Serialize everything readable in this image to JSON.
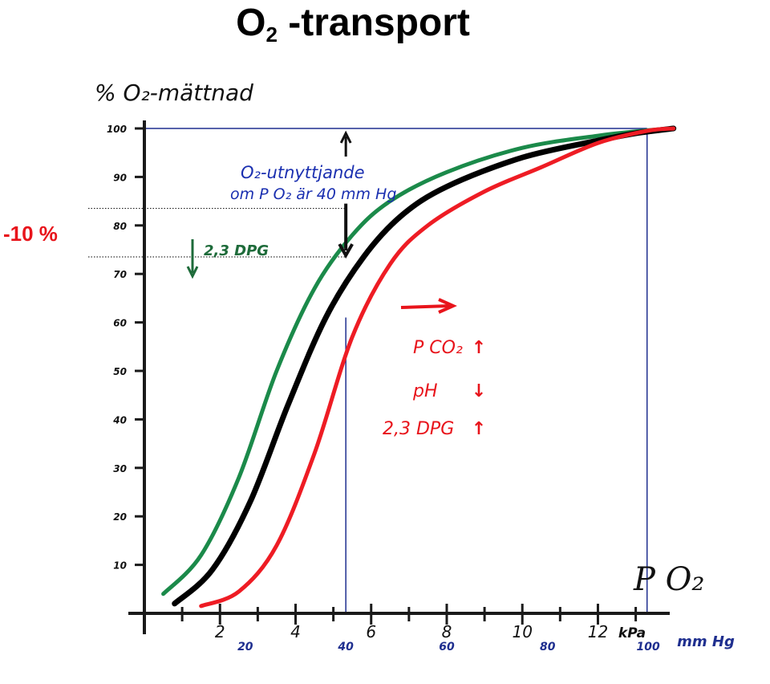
{
  "title_main": "O",
  "title_sub": "2",
  "title_rest": " -transport",
  "annotation_reduction": "-10 %",
  "chart_data": {
    "type": "line",
    "ylabel": "% O₂-mättnad",
    "xlabel": "P O₂",
    "xlim_kpa": [
      0,
      13.9
    ],
    "ylim": [
      0,
      100
    ],
    "y_ticks": [
      10,
      20,
      30,
      40,
      50,
      60,
      70,
      80,
      90,
      100
    ],
    "x_ticks_kpa": [
      {
        "value": 2,
        "label": "2"
      },
      {
        "value": 4,
        "label": "4"
      },
      {
        "value": 6,
        "label": "6"
      },
      {
        "value": 8,
        "label": "8"
      },
      {
        "value": 10,
        "label": "10"
      },
      {
        "value": 12,
        "label": "12"
      }
    ],
    "x_unit_kpa": "kPa",
    "x_ticks_mmhg": [
      {
        "kpa": 2.67,
        "label": "20"
      },
      {
        "kpa": 5.33,
        "label": "40"
      },
      {
        "kpa": 8.0,
        "label": "60"
      },
      {
        "kpa": 10.67,
        "label": "80"
      },
      {
        "kpa": 13.33,
        "label": "100"
      }
    ],
    "x_unit_mmhg": "mm Hg",
    "series": [
      {
        "color": "#1b8a4a",
        "x": [
          0.5,
          1.5,
          2.5,
          3.5,
          4.5,
          5.5,
          6.5,
          8,
          10,
          12,
          13.3,
          14
        ],
        "y": [
          4,
          12,
          28,
          50,
          67,
          78,
          85,
          91,
          96,
          98.5,
          99.6,
          100
        ]
      },
      {
        "color": "#000000",
        "x": [
          0.8,
          1.8,
          2.8,
          3.8,
          4.8,
          5.8,
          6.8,
          8,
          10,
          12,
          13,
          14
        ],
        "y": [
          2,
          9,
          23,
          43,
          61,
          73.5,
          82,
          88,
          94,
          97.5,
          99,
          100
        ]
      },
      {
        "color": "#ee1c24",
        "x": [
          1.5,
          2.5,
          3.5,
          4.5,
          5.5,
          6.5,
          7.5,
          9,
          10.5,
          12,
          13.3,
          14
        ],
        "y": [
          1.5,
          4.5,
          14,
          33,
          57,
          72,
          80,
          87,
          92,
          97,
          99.5,
          100
        ]
      }
    ],
    "reference_lines": {
      "y": 100,
      "x_kpa": [
        5.33,
        13.3
      ]
    },
    "arrow_annotation": {
      "line1": "O₂-utnyttjande",
      "line2": "om P O₂ är 40 mm Hg"
    },
    "dpg_label": "2,3 DPG",
    "legend_right_shift": [
      {
        "label": "P CO₂",
        "direction": "↑"
      },
      {
        "label": "pH",
        "direction": "↓"
      },
      {
        "label": "2,3 DPG",
        "direction": "↑"
      }
    ],
    "colors": {
      "axes": "#1a1a1a",
      "guides": "#1f2f8f",
      "annotation_blue": "#1a2fb0",
      "annotation_green": "#1e6b3a",
      "annotation_red": "#e8141b"
    }
  }
}
